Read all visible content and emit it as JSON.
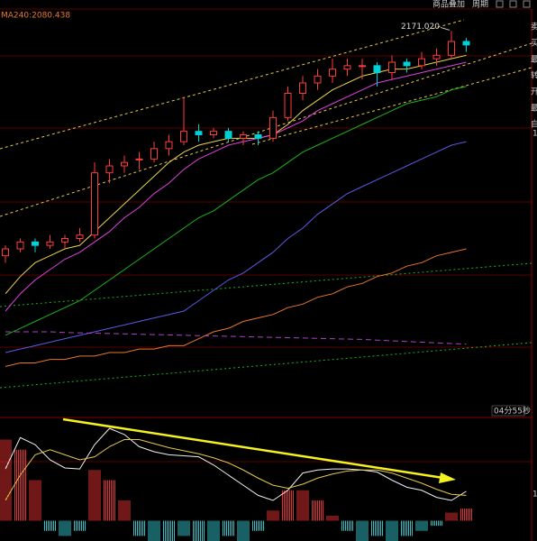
{
  "toolbar": {
    "overlay": "商品叠加",
    "period": "周期"
  },
  "side_panel": [
    "卖",
    "买",
    "最",
    "转",
    "开",
    "最",
    "自"
  ],
  "side_marks": [
    "1",
    "1"
  ],
  "chart_data": [
    {
      "type": "candlestick",
      "ma_legend": "MA240:2080.438",
      "annotations": [
        "2171.020"
      ],
      "countdown": "04分55秒",
      "ylim": [
        2060,
        2180
      ],
      "up_color": "#ff3b3b",
      "down_color": "#00d0d8",
      "ohlc": [
        [
          2106,
          2109,
          2104,
          2108
        ],
        [
          2108,
          2111,
          2107,
          2110
        ],
        [
          2110,
          2111,
          2107,
          2109
        ],
        [
          2109,
          2112,
          2108,
          2110
        ],
        [
          2110,
          2112,
          2108,
          2111
        ],
        [
          2111,
          2114,
          2110,
          2112
        ],
        [
          2112,
          2133,
          2111,
          2130
        ],
        [
          2130,
          2134,
          2127,
          2132
        ],
        [
          2132,
          2135,
          2130,
          2133
        ],
        [
          2134,
          2136,
          2131,
          2134
        ],
        [
          2134,
          2139,
          2133,
          2137
        ],
        [
          2137,
          2141,
          2135,
          2139
        ],
        [
          2139,
          2152,
          2138,
          2142
        ],
        [
          2142,
          2144,
          2139,
          2141
        ],
        [
          2141,
          2143,
          2140,
          2142
        ],
        [
          2142,
          2143,
          2139,
          2140
        ],
        [
          2140,
          2142,
          2138,
          2141
        ],
        [
          2141,
          2142,
          2138,
          2140
        ],
        [
          2140,
          2148,
          2139,
          2146
        ],
        [
          2146,
          2155,
          2145,
          2153
        ],
        [
          2153,
          2158,
          2151,
          2156
        ],
        [
          2156,
          2160,
          2154,
          2158
        ],
        [
          2158,
          2163,
          2156,
          2160
        ],
        [
          2160,
          2163,
          2158,
          2161
        ],
        [
          2161,
          2163,
          2157,
          2161
        ],
        [
          2161,
          2162,
          2155,
          2159
        ],
        [
          2159,
          2164,
          2157,
          2162
        ],
        [
          2162,
          2163,
          2159,
          2161
        ],
        [
          2161,
          2165,
          2160,
          2163
        ],
        [
          2163,
          2166,
          2161,
          2164
        ],
        [
          2164,
          2171.02,
          2163,
          2168
        ],
        [
          2168,
          2169,
          2165,
          2167
        ]
      ],
      "series": [
        {
          "color": "#e8d44a",
          "values": [
            2095,
            2100,
            2104,
            2106,
            2108,
            2109,
            2113,
            2117,
            2121,
            2125,
            2129,
            2133,
            2136,
            2138,
            2139,
            2140,
            2140,
            2140,
            2141,
            2144,
            2148,
            2151,
            2154,
            2156,
            2158,
            2159,
            2160,
            2160,
            2161,
            2162,
            2163,
            2164
          ]
        },
        {
          "color": "#e040e0",
          "values": [
            2090,
            2095,
            2099,
            2102,
            2105,
            2107,
            2110,
            2113,
            2117,
            2120,
            2124,
            2127,
            2131,
            2134,
            2136,
            2138,
            2139,
            2140,
            2141,
            2143,
            2145,
            2148,
            2150,
            2152,
            2154,
            2156,
            2157,
            2158,
            2159,
            2160,
            2161,
            2162
          ]
        },
        {
          "color": "#19b419",
          "values": [
            2083,
            2085,
            2087,
            2089,
            2091,
            2093,
            2096,
            2099,
            2102,
            2105,
            2108,
            2111,
            2114,
            2117,
            2119,
            2122,
            2125,
            2128,
            2130,
            2133,
            2136,
            2138,
            2140,
            2142,
            2144,
            2146,
            2148,
            2150,
            2151,
            2152,
            2154,
            2155
          ]
        },
        {
          "color": "#5a5ae6",
          "values": [
            2078,
            2079,
            2080,
            2081,
            2082,
            2083,
            2084,
            2085,
            2086,
            2087,
            2088,
            2089,
            2090,
            2093,
            2096,
            2099,
            2101,
            2104,
            2107,
            2111,
            2114,
            2118,
            2121,
            2124,
            2126,
            2128,
            2130,
            2132,
            2134,
            2136,
            2138,
            2139
          ]
        },
        {
          "color": "#e8782a",
          "values": [
            2074,
            2075,
            2075,
            2076,
            2076,
            2077,
            2077,
            2078,
            2078,
            2079,
            2079,
            2080,
            2080,
            2082,
            2084,
            2085,
            2087,
            2088,
            2089,
            2091,
            2092,
            2094,
            2095,
            2097,
            2098,
            2100,
            2101,
            2103,
            2104,
            2106,
            2107,
            2108
          ]
        },
        {
          "color": "#b040c8",
          "style": "dashed",
          "values": [
            2084,
            2084,
            2084,
            2084,
            2083.8,
            2083.7,
            2083.6,
            2083.5,
            2083.4,
            2083.3,
            2083.2,
            2083.1,
            2083,
            2082.9,
            2082.8,
            2082.7,
            2082.6,
            2082.5,
            2082.4,
            2082.3,
            2082.2,
            2082.1,
            2082,
            2081.9,
            2081.8,
            2081.6,
            2081.4,
            2081.2,
            2081,
            2080.8,
            2080.6,
            2080.438
          ]
        }
      ]
    },
    {
      "type": "macd",
      "ylim": [
        -2,
        10
      ],
      "up_color": "#e03030",
      "down_color": "#30c0c8",
      "histogram": [
        8,
        7,
        4,
        -1,
        -1.5,
        -1,
        5,
        4,
        2,
        -1.5,
        -2,
        -2,
        -1.5,
        -2,
        -2,
        -1.5,
        -2,
        -1,
        1,
        3,
        3,
        2,
        0.5,
        -1,
        -2,
        -1.5,
        -2,
        -1.5,
        -1,
        -0.5,
        0.8,
        1.2
      ],
      "series": [
        {
          "color": "#f0f0f0",
          "values": [
            5.1,
            8.2,
            7.5,
            6,
            5.2,
            5.1,
            7.5,
            9.1,
            8.5,
            7.3,
            6.8,
            6.5,
            6.4,
            6.3,
            5.5,
            4.5,
            3.5,
            2.5,
            2,
            3,
            4.7,
            5,
            5.1,
            5.1,
            5,
            4.8,
            4,
            3.3,
            3,
            2.3,
            2,
            2.9
          ]
        },
        {
          "color": "#e6c84a",
          "values": [
            2,
            4.5,
            6.5,
            7,
            6.5,
            6,
            6.3,
            7.3,
            8,
            8,
            7.6,
            7.2,
            6.9,
            6.6,
            6.2,
            5.7,
            5,
            4.2,
            3.5,
            3.2,
            3.6,
            4.2,
            4.6,
            4.9,
            5,
            5,
            4.7,
            4.2,
            3.7,
            3.1,
            2.6,
            2.5
          ]
        }
      ]
    }
  ]
}
